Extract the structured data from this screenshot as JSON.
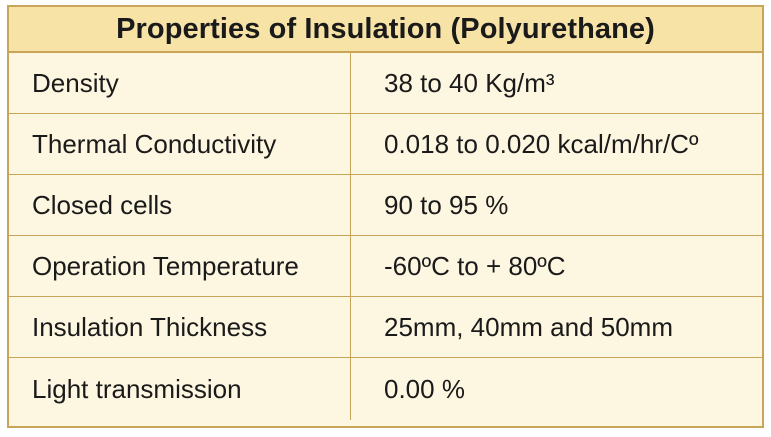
{
  "table": {
    "title": "Properties of Insulation (Polyurethane)",
    "rows": [
      {
        "label": "Density",
        "value": "38 to 40 Kg/m³"
      },
      {
        "label": "Thermal Conductivity",
        "value": "0.018 to 0.020 kcal/m/hr/Cº"
      },
      {
        "label": "Closed cells",
        "value": "90 to 95 %"
      },
      {
        "label": "Operation Temperature",
        "value": "-60ºC to + 80ºC"
      },
      {
        "label": "Insulation Thickness",
        "value": "25mm, 40mm and 50mm"
      },
      {
        "label": "Light transmission",
        "value": "0.00 %"
      }
    ]
  }
}
